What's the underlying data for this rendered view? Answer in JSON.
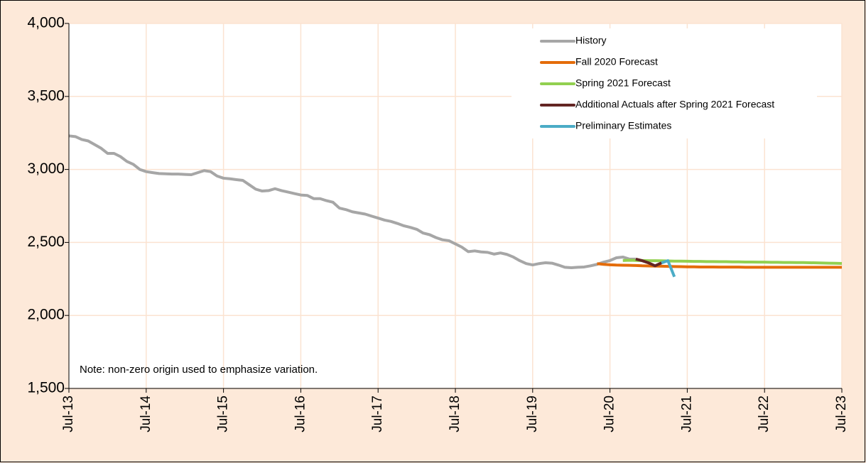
{
  "chart_data": {
    "type": "line",
    "categories": [
      "Jul-13",
      null,
      null,
      null,
      null,
      null,
      null,
      null,
      null,
      null,
      null,
      null,
      "Jul-14",
      null,
      null,
      null,
      null,
      null,
      null,
      null,
      null,
      null,
      null,
      null,
      "Jul-15",
      null,
      null,
      null,
      null,
      null,
      null,
      null,
      null,
      null,
      null,
      null,
      "Jul-16",
      null,
      null,
      null,
      null,
      null,
      null,
      null,
      null,
      null,
      null,
      null,
      "Jul-17",
      null,
      null,
      null,
      null,
      null,
      null,
      null,
      null,
      null,
      null,
      null,
      "Jul-18",
      null,
      null,
      null,
      null,
      null,
      null,
      null,
      null,
      null,
      null,
      null,
      "Jul-19",
      null,
      null,
      null,
      null,
      null,
      null,
      null,
      null,
      null,
      null,
      null,
      "Jul-20",
      null,
      null,
      null,
      null,
      null,
      null,
      null,
      null,
      null,
      null,
      null,
      "Jul-21",
      null,
      null,
      null,
      null,
      null,
      null,
      null,
      null,
      null,
      null,
      null,
      "Jul-22",
      null,
      null,
      null,
      null,
      null,
      null,
      null,
      null,
      null,
      null,
      null,
      "Jul-23"
    ],
    "series": [
      {
        "name": "History",
        "color": "#a6a6a6",
        "values": [
          3230,
          3225,
          3205,
          3195,
          3170,
          3145,
          3110,
          3110,
          3088,
          3055,
          3035,
          3000,
          2985,
          2978,
          2972,
          2970,
          2968,
          2968,
          2966,
          2964,
          2978,
          2992,
          2985,
          2955,
          2940,
          2936,
          2930,
          2925,
          2895,
          2865,
          2852,
          2855,
          2868,
          2855,
          2845,
          2835,
          2825,
          2822,
          2800,
          2800,
          2786,
          2775,
          2735,
          2725,
          2710,
          2702,
          2694,
          2680,
          2667,
          2653,
          2644,
          2630,
          2614,
          2603,
          2590,
          2564,
          2553,
          2533,
          2518,
          2512,
          2490,
          2468,
          2437,
          2442,
          2435,
          2432,
          2420,
          2428,
          2418,
          2400,
          2375,
          2355,
          2346,
          2355,
          2361,
          2358,
          2345,
          2330,
          2327,
          2330,
          2332,
          2340,
          2350,
          2365,
          2376,
          2395,
          2400,
          2386,
          2386,
          null,
          null,
          null,
          null,
          null,
          null,
          null,
          null,
          null,
          null,
          null,
          null,
          null,
          null,
          null,
          null,
          null,
          null,
          null,
          null,
          null,
          null,
          null,
          null,
          null,
          null,
          null,
          null,
          null,
          null,
          null,
          null
        ]
      },
      {
        "name": "Fall 2020 Forecast",
        "color": "#e46c0a",
        "values": [
          null,
          null,
          null,
          null,
          null,
          null,
          null,
          null,
          null,
          null,
          null,
          null,
          null,
          null,
          null,
          null,
          null,
          null,
          null,
          null,
          null,
          null,
          null,
          null,
          null,
          null,
          null,
          null,
          null,
          null,
          null,
          null,
          null,
          null,
          null,
          null,
          null,
          null,
          null,
          null,
          null,
          null,
          null,
          null,
          null,
          null,
          null,
          null,
          null,
          null,
          null,
          null,
          null,
          null,
          null,
          null,
          null,
          null,
          null,
          null,
          null,
          null,
          null,
          null,
          null,
          null,
          null,
          null,
          null,
          null,
          null,
          null,
          null,
          null,
          null,
          null,
          null,
          null,
          null,
          null,
          null,
          null,
          2355,
          2350,
          2347,
          2345,
          2344,
          2343,
          2342,
          2340,
          2339,
          2338,
          2337,
          2336,
          2335,
          2334,
          2333,
          2333,
          2332,
          2332,
          2332,
          2331,
          2331,
          2331,
          2331,
          2330,
          2330,
          2330,
          2330,
          2330,
          2330,
          2330,
          2330,
          2330,
          2330,
          2330,
          2330,
          2330,
          2330,
          2330,
          2330
        ]
      },
      {
        "name": "Spring 2021 Forecast",
        "color": "#92d050",
        "values": [
          null,
          null,
          null,
          null,
          null,
          null,
          null,
          null,
          null,
          null,
          null,
          null,
          null,
          null,
          null,
          null,
          null,
          null,
          null,
          null,
          null,
          null,
          null,
          null,
          null,
          null,
          null,
          null,
          null,
          null,
          null,
          null,
          null,
          null,
          null,
          null,
          null,
          null,
          null,
          null,
          null,
          null,
          null,
          null,
          null,
          null,
          null,
          null,
          null,
          null,
          null,
          null,
          null,
          null,
          null,
          null,
          null,
          null,
          null,
          null,
          null,
          null,
          null,
          null,
          null,
          null,
          null,
          null,
          null,
          null,
          null,
          null,
          null,
          null,
          null,
          null,
          null,
          null,
          null,
          null,
          null,
          null,
          null,
          null,
          null,
          null,
          2376,
          2378,
          2377,
          2376,
          2375,
          2375,
          2374,
          2373,
          2372,
          2372,
          2371,
          2370,
          2370,
          2369,
          2369,
          2368,
          2368,
          2367,
          2367,
          2366,
          2366,
          2365,
          2365,
          2364,
          2364,
          2363,
          2363,
          2362,
          2362,
          2361,
          2360,
          2359,
          2358,
          2357,
          2356
        ]
      },
      {
        "name": "Additional Actuals after Spring 2021 Forecast",
        "color": "#632523",
        "values": [
          null,
          null,
          null,
          null,
          null,
          null,
          null,
          null,
          null,
          null,
          null,
          null,
          null,
          null,
          null,
          null,
          null,
          null,
          null,
          null,
          null,
          null,
          null,
          null,
          null,
          null,
          null,
          null,
          null,
          null,
          null,
          null,
          null,
          null,
          null,
          null,
          null,
          null,
          null,
          null,
          null,
          null,
          null,
          null,
          null,
          null,
          null,
          null,
          null,
          null,
          null,
          null,
          null,
          null,
          null,
          null,
          null,
          null,
          null,
          null,
          null,
          null,
          null,
          null,
          null,
          null,
          null,
          null,
          null,
          null,
          null,
          null,
          null,
          null,
          null,
          null,
          null,
          null,
          null,
          null,
          null,
          null,
          null,
          null,
          null,
          null,
          null,
          null,
          2386,
          2375,
          2360,
          2340,
          2360,
          null,
          null,
          null,
          null,
          null,
          null,
          null,
          null,
          null,
          null,
          null,
          null,
          null,
          null,
          null,
          null,
          null,
          null,
          null,
          null,
          null,
          null,
          null,
          null,
          null,
          null,
          null,
          null
        ]
      },
      {
        "name": "Preliminary Estimates",
        "color": "#4bacc6",
        "values": [
          null,
          null,
          null,
          null,
          null,
          null,
          null,
          null,
          null,
          null,
          null,
          null,
          null,
          null,
          null,
          null,
          null,
          null,
          null,
          null,
          null,
          null,
          null,
          null,
          null,
          null,
          null,
          null,
          null,
          null,
          null,
          null,
          null,
          null,
          null,
          null,
          null,
          null,
          null,
          null,
          null,
          null,
          null,
          null,
          null,
          null,
          null,
          null,
          null,
          null,
          null,
          null,
          null,
          null,
          null,
          null,
          null,
          null,
          null,
          null,
          null,
          null,
          null,
          null,
          null,
          null,
          null,
          null,
          null,
          null,
          null,
          null,
          null,
          null,
          null,
          null,
          null,
          null,
          null,
          null,
          null,
          null,
          null,
          null,
          null,
          null,
          null,
          null,
          null,
          null,
          null,
          null,
          2360,
          2375,
          2265,
          null,
          null,
          null,
          null,
          null,
          null,
          null,
          null,
          null,
          null,
          null,
          null,
          null,
          null,
          null,
          null,
          null,
          null,
          null,
          null,
          null,
          null,
          null,
          null,
          null,
          null
        ]
      }
    ],
    "ylim": [
      1500,
      4000
    ],
    "yticks": [
      {
        "value": 1500,
        "label": "1,500"
      },
      {
        "value": 2000,
        "label": "2,000"
      },
      {
        "value": 2500,
        "label": "2,500"
      },
      {
        "value": 3000,
        "label": "3,000"
      },
      {
        "value": 3500,
        "label": "3,500"
      },
      {
        "value": 4000,
        "label": "4,000"
      }
    ],
    "grid": true,
    "legend": "upper right",
    "annotation": "Note: non-zero origin used to emphasize variation."
  }
}
